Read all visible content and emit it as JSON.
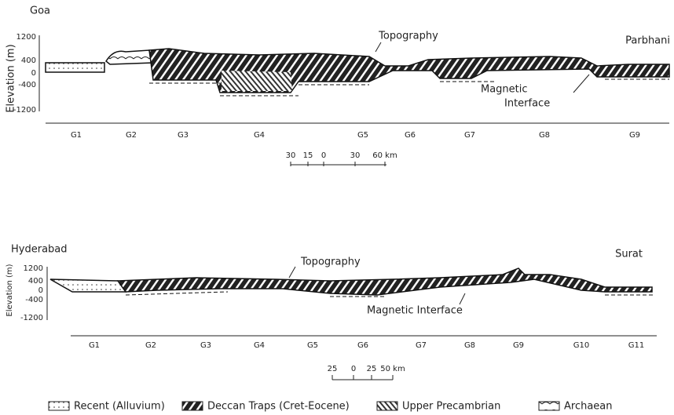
{
  "panels": [
    {
      "left_label": "Goa",
      "right_label": "Parbhani",
      "y_axis_label": "Elevation (m)",
      "y_ticks": [
        "1200",
        "400",
        "0",
        "-400",
        "-1200"
      ],
      "annotations": {
        "topography": "Topography",
        "magnetic_interface": [
          "Magnetic",
          "Interface"
        ]
      },
      "segments": [
        "G1",
        "G2",
        "G3",
        "G4",
        "G5",
        "G6",
        "G7",
        "G8",
        "G9"
      ],
      "scale_labels": [
        "30",
        "15",
        "0",
        "30",
        "60 km"
      ]
    },
    {
      "left_label": "Hyderabad",
      "right_label": "Surat",
      "y_axis_label": "Elevation (m)",
      "y_ticks": [
        "1200",
        "400",
        "0",
        "-400",
        "-1200"
      ],
      "annotations": {
        "topography": "Topography",
        "magnetic_interface": [
          "Magnetic Interface"
        ]
      },
      "segments": [
        "G1",
        "G2",
        "G3",
        "G4",
        "G5",
        "G6",
        "G7",
        "G8",
        "G9",
        "G10",
        "G11"
      ],
      "scale_labels": [
        "25",
        "0",
        "25",
        "50 km"
      ]
    }
  ],
  "legend": [
    "Recent (Alluvium)",
    "Deccan Traps (Cret-Eocene)",
    "Upper Precambrian",
    "Archaean"
  ]
}
